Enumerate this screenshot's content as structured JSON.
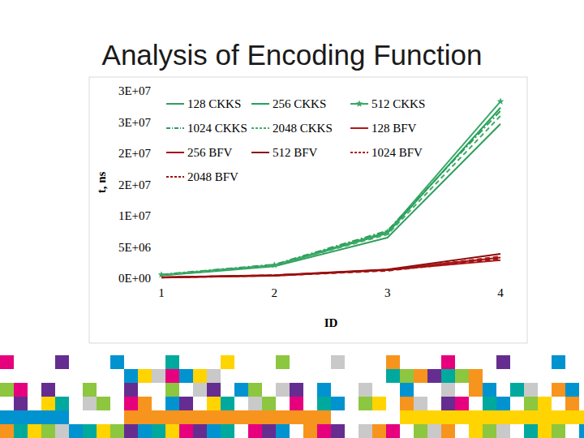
{
  "chart_data": {
    "type": "line",
    "title": "Analysis of Encoding Function",
    "x_label": "ID",
    "y_label": "t, ns",
    "categories": [
      "1",
      "2",
      "3",
      "4"
    ],
    "ylim": [
      0,
      30000000
    ],
    "yticks": [
      {
        "value": 0,
        "label": "0E+00"
      },
      {
        "value": 5000000,
        "label": "5E+06"
      },
      {
        "value": 10000000,
        "label": "1E+07"
      },
      {
        "value": 15000000,
        "label": "2E+07"
      },
      {
        "value": 20000000,
        "label": "2E+07"
      },
      {
        "value": 25000000,
        "label": "3E+07"
      },
      {
        "value": 30000000,
        "label": "3E+07"
      }
    ],
    "grid": false,
    "legend": "top-left",
    "series": [
      {
        "name": "128 CKKS",
        "color": "#2f9e5c",
        "line_style": "solid",
        "values": [
          450000,
          1900000,
          6500000,
          24700000
        ]
      },
      {
        "name": "256 CKKS",
        "color": "#23a35a",
        "line_style": "solid",
        "values": [
          500000,
          2000000,
          7200000,
          27300000
        ]
      },
      {
        "name": "512 CKKS",
        "color": "#3aa868",
        "line_style": "solid",
        "marker": "star",
        "values": [
          550000,
          2100000,
          7400000,
          28300000
        ]
      },
      {
        "name": "1024 CKKS",
        "color": "#2f9e5c",
        "line_style": "dashdot",
        "values": [
          600000,
          2200000,
          7600000,
          26800000
        ]
      },
      {
        "name": "2048 CKKS",
        "color": "#40ad6c",
        "line_style": "dashed",
        "values": [
          520000,
          2050000,
          7000000,
          26000000
        ]
      },
      {
        "name": "128 BFV",
        "color": "#b01818",
        "line_style": "solid",
        "values": [
          100000,
          400000,
          1300000,
          2900000
        ]
      },
      {
        "name": "256 BFV",
        "color": "#a01010",
        "line_style": "solid",
        "values": [
          120000,
          450000,
          1350000,
          3300000
        ]
      },
      {
        "name": "512 BFV",
        "color": "#8c0c0c",
        "line_style": "solid",
        "values": [
          150000,
          500000,
          1400000,
          3900000
        ]
      },
      {
        "name": "1024 BFV",
        "color": "#b01818",
        "line_style": "dashed",
        "values": [
          130000,
          480000,
          1250000,
          3500000
        ]
      },
      {
        "name": "2048 BFV",
        "color": "#a01010",
        "line_style": "dashed",
        "values": [
          110000,
          420000,
          1200000,
          3100000
        ]
      }
    ]
  }
}
